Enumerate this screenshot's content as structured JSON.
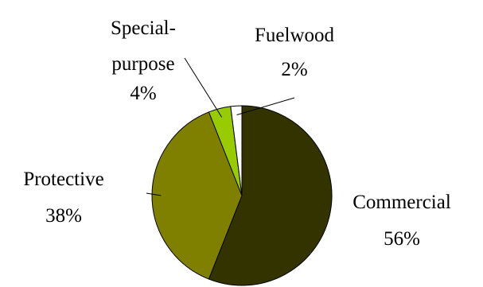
{
  "chart_data": {
    "type": "pie",
    "title": "",
    "start_angle_deg": 0,
    "direction": "clockwise",
    "slices": [
      {
        "name_lines": [
          "Commercial"
        ],
        "pct_label": "56%",
        "value": 56,
        "color": "#333300"
      },
      {
        "name_lines": [
          "Protective"
        ],
        "pct_label": "38%",
        "value": 38,
        "color": "#808000"
      },
      {
        "name_lines": [
          "Special-",
          "purpose"
        ],
        "pct_label": "4%",
        "value": 4,
        "color": "#99cc00"
      },
      {
        "name_lines": [
          "Fuelwood"
        ],
        "pct_label": "2%",
        "value": 2,
        "color": "#ffffff"
      }
    ]
  }
}
